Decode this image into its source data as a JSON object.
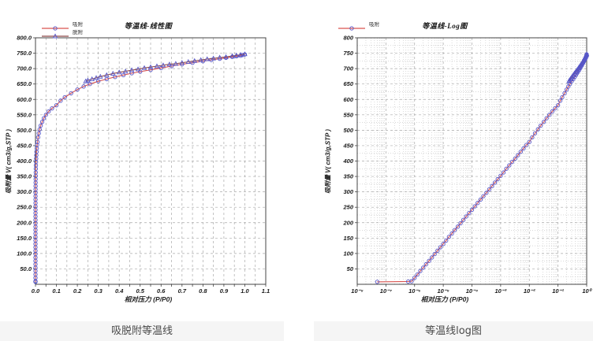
{
  "page": {
    "background": "#ffffff",
    "caption_band_color": "#f5f5f5"
  },
  "captions": {
    "left": "吸脱附等温线",
    "right": "等温线log图"
  },
  "colors": {
    "adsorption_line": "#d9534f",
    "desorption_line": "#8f4a4a",
    "marker_stroke": "#5656c8",
    "grid_major": "#aaaaaa",
    "grid_minor": "#c2c2c2",
    "plot_border": "#444444",
    "tick_text": "#1a1a1a"
  },
  "chart_data": [
    {
      "type": "line",
      "title": "等温线-线性图",
      "x_axis": {
        "label": "相对压力 (P/P0)",
        "scale": "linear",
        "min": 0,
        "max": 1.1,
        "minor_step": 0.05,
        "major_step": 0.1,
        "ticks": [
          "0.0",
          "0.1",
          "0.2",
          "0.3",
          "0.4",
          "0.5",
          "0.6",
          "0.7",
          "0.8",
          "0.9",
          "1.0",
          "1.1"
        ]
      },
      "y_axis": {
        "label": "吸附量 V( cm3/g,STP )",
        "min": 0,
        "max": 800,
        "major_step": 50,
        "ticks": [
          "50.0",
          "100.0",
          "150.0",
          "200.0",
          "250.0",
          "300.0",
          "350.0",
          "400.0",
          "450.0",
          "500.0",
          "550.0",
          "600.0",
          "650.0",
          "700.0",
          "750.0",
          "800.0"
        ]
      },
      "grid": "dashed",
      "legend_position": "top-left",
      "legend_entries": [
        "吸附",
        "脱附"
      ],
      "series": [
        {
          "name": "吸附",
          "color": "#d9534f",
          "marker": "circle",
          "marker_color": "#5656c8",
          "points": [
            [
              5e-08,
              8
            ],
            [
              6e-07,
              9
            ],
            [
              7.9e-07,
              10
            ],
            [
              1e-06,
              21
            ],
            [
              1.26e-06,
              32
            ],
            [
              1.58e-06,
              43
            ],
            [
              2e-06,
              54
            ],
            [
              2.5e-06,
              65
            ],
            [
              3.2e-06,
              76
            ],
            [
              4e-06,
              87
            ],
            [
              5e-06,
              98
            ],
            [
              6.3e-06,
              109
            ],
            [
              7.9e-06,
              120
            ],
            [
              1e-05,
              131
            ],
            [
              1.26e-05,
              142
            ],
            [
              1.58e-05,
              154
            ],
            [
              2e-05,
              165
            ],
            [
              2.5e-05,
              176
            ],
            [
              3.2e-05,
              187
            ],
            [
              4e-05,
              198
            ],
            [
              5e-05,
              209
            ],
            [
              6.3e-05,
              220
            ],
            [
              7.9e-05,
              231
            ],
            [
              0.0001,
              242
            ],
            [
              0.000126,
              253
            ],
            [
              0.000158,
              264
            ],
            [
              0.0002,
              275
            ],
            [
              0.00025,
              286
            ],
            [
              0.00032,
              297
            ],
            [
              0.0004,
              308
            ],
            [
              0.0005,
              319
            ],
            [
              0.00063,
              330
            ],
            [
              0.00079,
              341
            ],
            [
              0.001,
              352
            ],
            [
              0.00126,
              363
            ],
            [
              0.00158,
              375
            ],
            [
              0.002,
              386
            ],
            [
              0.0025,
              397
            ],
            [
              0.0032,
              408
            ],
            [
              0.004,
              419
            ],
            [
              0.005,
              430
            ],
            [
              0.0063,
              441
            ],
            [
              0.0079,
              452
            ],
            [
              0.01,
              462
            ],
            [
              0.0126,
              477
            ],
            [
              0.0158,
              490
            ],
            [
              0.02,
              503
            ],
            [
              0.025,
              515
            ],
            [
              0.032,
              527
            ],
            [
              0.04,
              539
            ],
            [
              0.05,
              550
            ],
            [
              0.063,
              561
            ],
            [
              0.079,
              571
            ],
            [
              0.1,
              581
            ],
            [
              0.12,
              596
            ],
            [
              0.14,
              607
            ],
            [
              0.17,
              620
            ],
            [
              0.2,
              632
            ],
            [
              0.23,
              642
            ],
            [
              0.26,
              650
            ],
            [
              0.3,
              659
            ],
            [
              0.34,
              666
            ],
            [
              0.38,
              673
            ],
            [
              0.42,
              679
            ],
            [
              0.46,
              685
            ],
            [
              0.5,
              690
            ],
            [
              0.55,
              696
            ],
            [
              0.6,
              702
            ],
            [
              0.65,
              708
            ],
            [
              0.7,
              714
            ],
            [
              0.75,
              719
            ],
            [
              0.8,
              724
            ],
            [
              0.84,
              728
            ],
            [
              0.88,
              732
            ],
            [
              0.91,
              735
            ],
            [
              0.94,
              738
            ],
            [
              0.96,
              740
            ],
            [
              0.98,
              742
            ],
            [
              0.99,
              744
            ],
            [
              1.0,
              746
            ]
          ]
        },
        {
          "name": "脱附",
          "color": "#8f4a4a",
          "marker": "triangle",
          "marker_color": "#5656c8",
          "points": [
            [
              0.24,
              659
            ],
            [
              0.25,
              662
            ],
            [
              0.27,
              666
            ],
            [
              0.29,
              670
            ],
            [
              0.31,
              674
            ],
            [
              0.34,
              679
            ],
            [
              0.37,
              684
            ],
            [
              0.4,
              688
            ],
            [
              0.43,
              691
            ],
            [
              0.46,
              695
            ],
            [
              0.49,
              698
            ],
            [
              0.52,
              702
            ],
            [
              0.55,
              705
            ],
            [
              0.58,
              708
            ],
            [
              0.61,
              711
            ],
            [
              0.64,
              714
            ],
            [
              0.67,
              716
            ],
            [
              0.7,
              719
            ],
            [
              0.73,
              722
            ],
            [
              0.76,
              725
            ],
            [
              0.79,
              728
            ],
            [
              0.82,
              731
            ],
            [
              0.85,
              733
            ],
            [
              0.88,
              736
            ],
            [
              0.91,
              738
            ],
            [
              0.94,
              741
            ],
            [
              0.96,
              743
            ],
            [
              0.98,
              745
            ],
            [
              1.0,
              747
            ]
          ]
        }
      ]
    },
    {
      "type": "line",
      "title": "等温线-Log图",
      "x_axis": {
        "label": "相对压力 (P/P0)",
        "scale": "log",
        "min_exp": -8,
        "max_exp": 0,
        "ticks": [
          "10⁻⁸",
          "10⁻⁷",
          "10⁻⁶",
          "10⁻⁵",
          "10⁻⁴",
          "10⁻³",
          "10⁻²",
          "10⁻¹",
          "10⁰"
        ]
      },
      "y_axis": {
        "label": "吸附量 V( cm3/g,STP )",
        "min": 0,
        "max": 800,
        "major_step": 50,
        "minor_step": 25,
        "ticks": [
          "50",
          "100",
          "150",
          "200",
          "250",
          "300",
          "350",
          "400",
          "450",
          "500",
          "550",
          "600",
          "650",
          "700",
          "750",
          "800"
        ]
      },
      "grid": "dashed-with-log-minors",
      "legend_position": "top-left",
      "legend_entries": [
        "吸附"
      ],
      "series": [
        {
          "name": "吸附",
          "color": "#d9534f",
          "marker": "circle",
          "marker_color": "#5656c8",
          "points": [
            [
              5e-08,
              8
            ],
            [
              6e-07,
              9
            ],
            [
              7.9e-07,
              10
            ],
            [
              1e-06,
              21
            ],
            [
              1.26e-06,
              32
            ],
            [
              1.58e-06,
              43
            ],
            [
              2e-06,
              54
            ],
            [
              2.5e-06,
              65
            ],
            [
              3.2e-06,
              76
            ],
            [
              4e-06,
              87
            ],
            [
              5e-06,
              98
            ],
            [
              6.3e-06,
              109
            ],
            [
              7.9e-06,
              120
            ],
            [
              1e-05,
              131
            ],
            [
              1.26e-05,
              142
            ],
            [
              1.58e-05,
              154
            ],
            [
              2e-05,
              165
            ],
            [
              2.5e-05,
              176
            ],
            [
              3.2e-05,
              187
            ],
            [
              4e-05,
              198
            ],
            [
              5e-05,
              209
            ],
            [
              6.3e-05,
              220
            ],
            [
              7.9e-05,
              231
            ],
            [
              0.0001,
              242
            ],
            [
              0.000126,
              253
            ],
            [
              0.000158,
              264
            ],
            [
              0.0002,
              275
            ],
            [
              0.00025,
              286
            ],
            [
              0.00032,
              297
            ],
            [
              0.0004,
              308
            ],
            [
              0.0005,
              319
            ],
            [
              0.00063,
              330
            ],
            [
              0.00079,
              341
            ],
            [
              0.001,
              352
            ],
            [
              0.00126,
              363
            ],
            [
              0.00158,
              375
            ],
            [
              0.002,
              386
            ],
            [
              0.0025,
              397
            ],
            [
              0.0032,
              408
            ],
            [
              0.004,
              419
            ],
            [
              0.005,
              430
            ],
            [
              0.0063,
              441
            ],
            [
              0.0079,
              452
            ],
            [
              0.01,
              462
            ],
            [
              0.0126,
              477
            ],
            [
              0.0158,
              490
            ],
            [
              0.02,
              503
            ],
            [
              0.025,
              515
            ],
            [
              0.032,
              527
            ],
            [
              0.04,
              539
            ],
            [
              0.05,
              550
            ],
            [
              0.063,
              561
            ],
            [
              0.079,
              571
            ],
            [
              0.1,
              581
            ],
            [
              0.12,
              596
            ],
            [
              0.14,
              607
            ],
            [
              0.17,
              620
            ],
            [
              0.2,
              632
            ],
            [
              0.23,
              642
            ],
            [
              0.26,
              650
            ],
            [
              0.3,
              659
            ],
            [
              0.34,
              666
            ],
            [
              0.38,
              673
            ],
            [
              0.42,
              679
            ],
            [
              0.46,
              685
            ],
            [
              0.5,
              690
            ],
            [
              0.55,
              696
            ],
            [
              0.6,
              702
            ],
            [
              0.65,
              708
            ],
            [
              0.7,
              714
            ],
            [
              0.75,
              719
            ],
            [
              0.8,
              724
            ],
            [
              0.84,
              728
            ],
            [
              0.88,
              732
            ],
            [
              0.91,
              735
            ],
            [
              0.94,
              738
            ],
            [
              0.96,
              740
            ],
            [
              0.98,
              742
            ],
            [
              0.99,
              744
            ],
            [
              1.0,
              746
            ]
          ]
        },
        {
          "name": "脱附",
          "color": "#8f4a4a",
          "marker": "triangle",
          "marker_color": "#5656c8",
          "points": [
            [
              0.24,
              659
            ],
            [
              0.25,
              662
            ],
            [
              0.27,
              666
            ],
            [
              0.29,
              670
            ],
            [
              0.31,
              674
            ],
            [
              0.34,
              679
            ],
            [
              0.37,
              684
            ],
            [
              0.4,
              688
            ],
            [
              0.43,
              691
            ],
            [
              0.46,
              695
            ],
            [
              0.49,
              698
            ],
            [
              0.52,
              702
            ],
            [
              0.55,
              705
            ],
            [
              0.58,
              708
            ],
            [
              0.61,
              711
            ],
            [
              0.64,
              714
            ],
            [
              0.67,
              716
            ],
            [
              0.7,
              719
            ],
            [
              0.73,
              722
            ],
            [
              0.76,
              725
            ],
            [
              0.79,
              728
            ],
            [
              0.82,
              731
            ],
            [
              0.85,
              733
            ],
            [
              0.88,
              736
            ],
            [
              0.91,
              738
            ],
            [
              0.94,
              741
            ],
            [
              0.96,
              743
            ],
            [
              0.98,
              745
            ],
            [
              1.0,
              747
            ]
          ]
        }
      ]
    }
  ]
}
